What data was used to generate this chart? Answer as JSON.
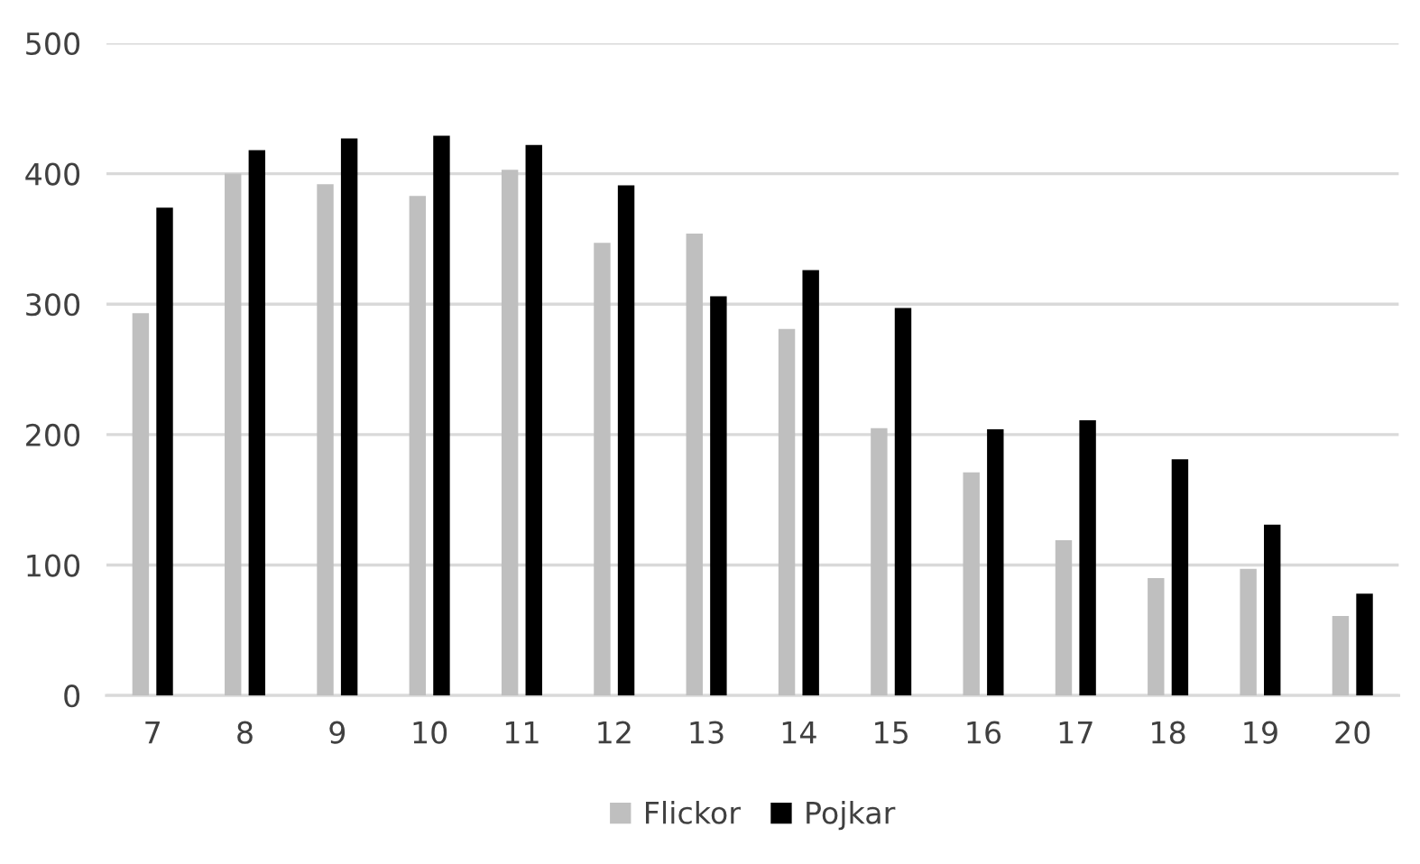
{
  "chart_data": {
    "type": "bar",
    "categories": [
      "7",
      "8",
      "9",
      "10",
      "11",
      "12",
      "13",
      "14",
      "15",
      "16",
      "17",
      "18",
      "19",
      "20"
    ],
    "series": [
      {
        "name": "Flickor",
        "color": "#bfbfbf",
        "values": [
          293,
          400,
          392,
          383,
          403,
          347,
          354,
          281,
          205,
          171,
          119,
          90,
          97,
          61
        ]
      },
      {
        "name": "Pojkar",
        "color": "#000000",
        "values": [
          374,
          418,
          427,
          429,
          422,
          391,
          306,
          326,
          297,
          204,
          211,
          181,
          131,
          78
        ]
      }
    ],
    "ylim": [
      0,
      500
    ],
    "yticks": [
      0,
      100,
      200,
      300,
      400,
      500
    ],
    "grid": "y",
    "legend": "bottom"
  }
}
